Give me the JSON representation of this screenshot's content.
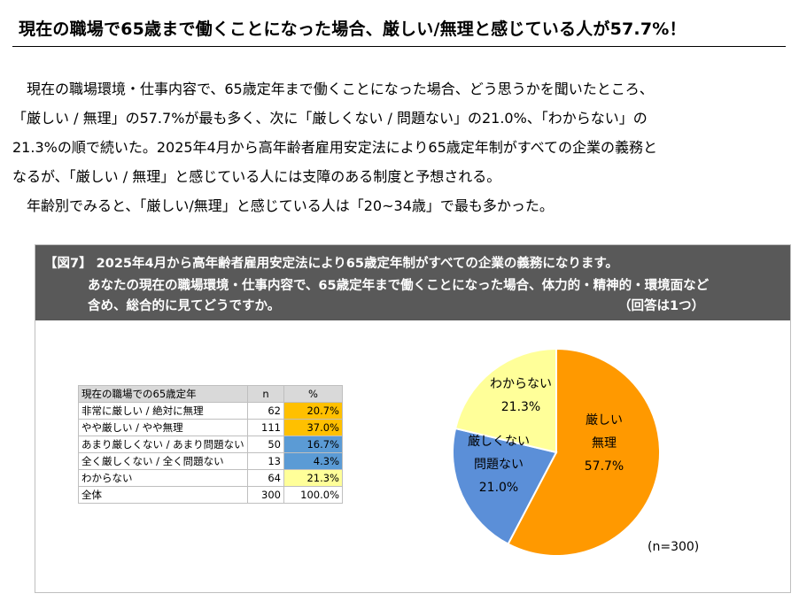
{
  "page": {
    "title": "現在の職場で65歳まで働くことになった場合、厳しい/無理と感じている人が57.7%！",
    "paragraph_lines": [
      "　現在の職場環境・仕事内容で、65歳定年まで働くことになった場合、どう思うかを聞いたところ、",
      "「厳しい / 無理」の57.7%が最も多く、次に「厳しくない / 問題ない」の21.0%、「わからない」の",
      "21.3%の順で続いた。2025年4月から高年齢者雇用安定法により65歳定年制がすべての企業の義務と",
      "なるが、「厳しい / 無理」と感じている人には支障のある制度と予想される。",
      "　年齢別でみると、「厳しい/無理」と感じている人は「20~34歳」で最も多かった。"
    ]
  },
  "figure": {
    "header_line1": "【図7】 2025年4月から高年齢者雇用安定法により65歳定年制がすべての企業の義務になります。",
    "header_line2": "あなたの現在の職場環境・仕事内容で、65歳定年まで働くことになった場合、体力的・精神的・環境面など",
    "header_line3": "含め、総合的に見てどうですか。",
    "header_note": "（回答は1つ）",
    "sample_label": "(n=300)"
  },
  "table": {
    "headers": [
      "現在の職場での65歳定年",
      "n",
      "%"
    ],
    "rows": [
      {
        "label": "非常に厳しい / 絶対に無理",
        "n": "62",
        "pct": "20.7%",
        "color": "#ffc000"
      },
      {
        "label": "やや厳しい / やや無理",
        "n": "111",
        "pct": "37.0%",
        "color": "#ffc000"
      },
      {
        "label": "あまり厳しくない / あまり問題ない",
        "n": "50",
        "pct": "16.7%",
        "color": "#5b9bd5"
      },
      {
        "label": "全く厳しくない / 全く問題ない",
        "n": "13",
        "pct": "4.3%",
        "color": "#5b9bd5"
      },
      {
        "label": "わからない",
        "n": "64",
        "pct": "21.3%",
        "color": "#ffff99"
      }
    ],
    "total": {
      "label": "全体",
      "n": "300",
      "pct": "100.0%"
    }
  },
  "chart_data": {
    "type": "pie",
    "title": "",
    "slices": [
      {
        "lines": [
          "厳しい",
          "無理",
          "57.7%"
        ],
        "value": 57.7,
        "color": "#ff9900"
      },
      {
        "lines": [
          "厳しくない",
          "問題ない",
          "21.0%"
        ],
        "value": 21.0,
        "color": "#5b8fd8"
      },
      {
        "lines": [
          "わからない",
          "21.3%"
        ],
        "value": 21.3,
        "color": "#ffff99"
      }
    ]
  }
}
